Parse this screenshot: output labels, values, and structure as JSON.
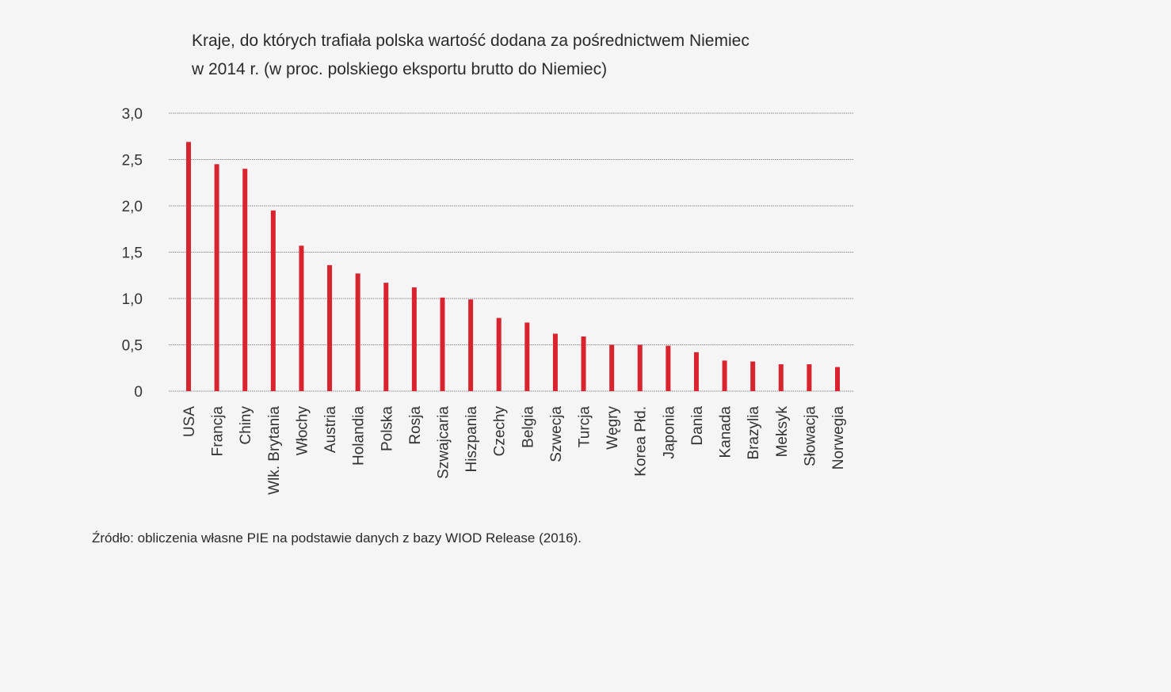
{
  "title_lines": [
    "Kraje, do których trafiała polska wartość dodana za pośrednictwem Niemiec",
    "w 2014 r. (w proc. polskiego eksportu brutto do Niemiec)"
  ],
  "source": "Źródło: obliczenia własne PIE na podstawie danych z bazy WIOD Release (2016).",
  "chart_data": {
    "type": "bar",
    "categories": [
      "USA",
      "Francja",
      "Chiny",
      "Wlk. Brytania",
      "Włochy",
      "Austria",
      "Holandia",
      "Polska",
      "Rosja",
      "Szwajcaria",
      "Hiszpania",
      "Czechy",
      "Belgia",
      "Szwecja",
      "Turcja",
      "Węgry",
      "Korea Płd.",
      "Japonia",
      "Dania",
      "Kanada",
      "Brazylia",
      "Meksyk",
      "Słowacja",
      "Norwegia"
    ],
    "values": [
      2.69,
      2.45,
      2.4,
      1.95,
      1.57,
      1.36,
      1.27,
      1.17,
      1.12,
      1.01,
      0.99,
      0.79,
      0.74,
      0.62,
      0.59,
      0.5,
      0.5,
      0.49,
      0.42,
      0.33,
      0.32,
      0.29,
      0.29,
      0.26
    ],
    "y_ticks": [
      "0",
      "0,5",
      "1,0",
      "1,5",
      "2,0",
      "2,5",
      "3,0"
    ],
    "ylim": [
      0,
      3
    ],
    "grid": true,
    "bar_color": "#d7242f",
    "grid_color": "#888888",
    "legend": "none"
  }
}
